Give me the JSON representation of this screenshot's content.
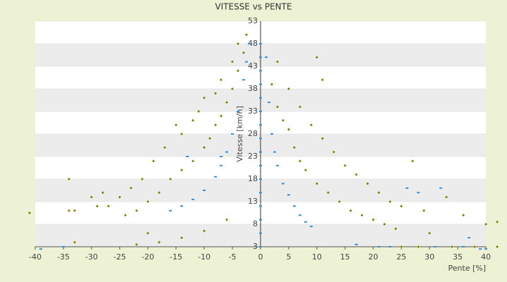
{
  "chart_data": {
    "type": "scatter",
    "title": "VITESSE vs PENTE",
    "x_label": "Pente [%]",
    "y_label": "Vitesse [km/h]",
    "xlim": [
      -40,
      40
    ],
    "xticks": [
      -40,
      -35,
      -30,
      -25,
      -20,
      -15,
      -10,
      -5,
      0,
      5,
      10,
      15,
      20,
      25,
      30,
      35,
      40
    ],
    "ylim": [
      3,
      53
    ],
    "yticks": [
      3,
      8,
      13,
      18,
      23,
      28,
      33,
      38,
      43,
      48,
      53
    ],
    "grid": true,
    "series": [
      {
        "color": "#3a8fd9",
        "marker": "dash",
        "x": [
          0,
          0,
          0,
          0,
          0,
          0,
          0,
          0,
          0,
          0,
          0,
          0,
          0,
          0,
          0,
          0,
          1,
          1.5,
          2,
          2.5,
          3,
          4,
          5,
          6,
          7,
          8,
          9,
          17,
          21,
          23,
          31,
          36,
          39,
          40,
          37,
          32,
          26,
          28,
          -2,
          -2.5,
          -3,
          -4,
          -5,
          -6,
          -7,
          -8,
          -10,
          -12,
          -14,
          -16,
          -39,
          -35,
          -13,
          -7
        ],
        "values": [
          3,
          6,
          9,
          12,
          15,
          18,
          21,
          24,
          27,
          30,
          33,
          36,
          39,
          42,
          45,
          48,
          45,
          35,
          28,
          24,
          21,
          17,
          14.5,
          12,
          10,
          8.5,
          7.5,
          3.5,
          3,
          3,
          3,
          3,
          2.5,
          2.5,
          5,
          16,
          16,
          15,
          48,
          44,
          40,
          33,
          28,
          24,
          21,
          18.5,
          15.5,
          13.5,
          12,
          11,
          2.5,
          3,
          23,
          23
        ]
      },
      {
        "color": "#7a7a10",
        "marker": "diamond",
        "x": [
          2,
          3,
          4,
          5,
          6,
          7,
          8,
          10,
          12,
          14,
          16,
          18,
          20,
          22,
          24,
          3,
          5,
          7,
          9,
          11,
          13,
          15,
          17,
          19,
          21,
          23,
          25,
          10,
          11,
          33,
          36,
          40,
          42,
          42,
          38,
          34,
          30,
          28,
          25,
          29,
          27,
          -2.5,
          -3,
          -4,
          -5,
          -6,
          -7,
          -8,
          -9,
          -10,
          -12,
          -14,
          -16,
          -18,
          -20,
          -22,
          -24,
          -4,
          -5,
          -7,
          -8,
          -10,
          -11,
          -12,
          -14,
          -15,
          -17,
          -19,
          -21,
          -23,
          -25,
          -27,
          -34,
          -34,
          -33,
          -30,
          -29,
          -28,
          -41,
          -33,
          -22,
          -20,
          -18,
          -14,
          -10,
          -6
        ],
        "values": [
          39,
          34,
          31,
          29,
          25,
          22,
          20,
          17,
          15,
          13,
          11,
          10,
          9,
          8,
          7,
          44,
          38,
          34,
          30,
          27,
          24,
          21,
          19,
          17,
          15,
          13,
          12,
          45,
          40,
          14,
          10,
          8,
          8.5,
          3,
          3,
          3,
          6,
          3,
          3,
          11,
          22,
          50,
          46,
          42,
          38,
          35,
          32,
          30,
          27,
          25,
          22,
          20,
          18,
          15,
          13,
          11,
          10,
          48,
          44,
          40,
          37,
          36,
          33,
          31,
          28,
          30,
          25,
          22,
          18,
          16,
          14,
          12,
          18,
          11,
          11,
          14,
          12,
          15,
          10.5,
          4,
          3.5,
          6,
          4,
          5,
          6.5,
          9
        ]
      }
    ]
  }
}
